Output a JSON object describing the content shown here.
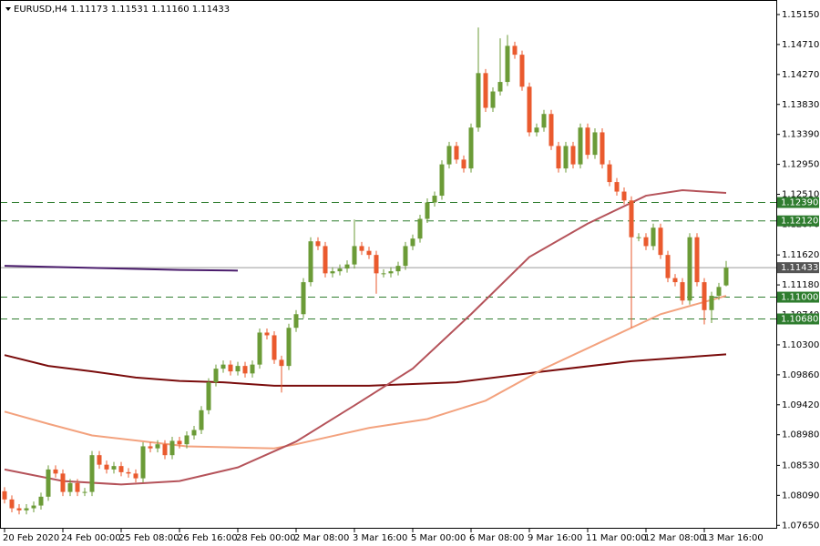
{
  "chart_data": {
    "type": "candlestick",
    "title": "EURUSD,H4  1.11173 1.11531 1.11160 1.11433",
    "categories": [
      "20 Feb 2020",
      null,
      null,
      null,
      null,
      null,
      null,
      null,
      "24 Feb 00:00",
      null,
      null,
      null,
      null,
      null,
      null,
      null,
      "25 Feb 08:00",
      null,
      null,
      null,
      null,
      null,
      null,
      null,
      "26 Feb 16:00",
      null,
      null,
      null,
      null,
      null,
      null,
      null,
      "28 Feb 00:00",
      null,
      null,
      null,
      null,
      null,
      null,
      null,
      "2 Mar 08:00",
      null,
      null,
      null,
      null,
      null,
      null,
      null,
      "3 Mar 16:00",
      null,
      null,
      null,
      null,
      null,
      null,
      null,
      "5 Mar 00:00",
      null,
      null,
      null,
      null,
      null,
      null,
      null,
      "6 Mar 08:00",
      null,
      null,
      null,
      null,
      null,
      null,
      null,
      "9 Mar 16:00",
      null,
      null,
      null,
      null,
      null,
      null,
      null,
      "11 Mar 00:00",
      null,
      null,
      null,
      null,
      null,
      null,
      null,
      "12 Mar 08:00",
      null,
      null,
      null,
      null,
      null,
      null,
      null,
      "13 Mar 16:00",
      null,
      null,
      null
    ],
    "open": [
      1.0815,
      1.0803,
      1.079,
      1.0787,
      1.079,
      1.0794,
      1.0807,
      1.0847,
      1.0841,
      1.0814,
      1.0827,
      1.0814,
      1.0814,
      1.0868,
      1.0854,
      1.0847,
      1.0852,
      1.0843,
      1.0841,
      1.0834,
      1.0881,
      1.0878,
      1.0884,
      1.0868,
      1.0889,
      1.0884,
      1.0897,
      1.0905,
      1.0934,
      1.0975,
      1.0995,
      1.1001,
      1.0991,
      1.0999,
      1.0988,
      1.1001,
      1.1048,
      1.1044,
      1.1008,
      1.0999,
      1.1055,
      1.1075,
      1.1122,
      1.1182,
      1.1175,
      1.1135,
      1.1138,
      1.1142,
      1.1148,
      1.1175,
      1.1168,
      1.1162,
      1.1135,
      1.1135,
      1.1138,
      1.1146,
      1.1175,
      1.1186,
      1.1215,
      1.1239,
      1.1249,
      1.1295,
      1.1322,
      1.1302,
      1.1289,
      1.1349,
      1.1429,
      1.1378,
      1.1402,
      1.1416,
      1.1469,
      1.1456,
      1.1409,
      1.1342,
      1.1349,
      1.1369,
      1.1322,
      1.1289,
      1.1322,
      1.1295,
      1.1349,
      1.1309,
      1.1342,
      1.1295,
      1.1269,
      1.1255,
      1.1242,
      1.1188,
      1.1188,
      1.1175,
      1.1202,
      1.1162,
      1.1128,
      1.1122,
      1.1095,
      1.1188,
      1.1122,
      1.1081,
      1.1102,
      1.11173
    ],
    "high": [
      1.0821,
      1.0809,
      1.0796,
      1.0796,
      1.08,
      1.0813,
      1.0853,
      1.0853,
      1.0847,
      1.0833,
      1.0833,
      1.082,
      1.0874,
      1.0874,
      1.086,
      1.0858,
      1.0858,
      1.0849,
      1.0847,
      1.0887,
      1.0887,
      1.089,
      1.089,
      1.0895,
      1.0895,
      1.0903,
      1.0911,
      1.094,
      1.0981,
      1.1001,
      1.1007,
      1.1007,
      1.1005,
      1.1005,
      1.1007,
      1.1054,
      1.1054,
      1.105,
      1.1014,
      1.1061,
      1.1081,
      1.1128,
      1.1188,
      1.1188,
      1.1181,
      1.1144,
      1.1148,
      1.1154,
      1.1214,
      1.1181,
      1.1174,
      1.1168,
      1.1141,
      1.1144,
      1.1152,
      1.1181,
      1.1192,
      1.1221,
      1.1245,
      1.1255,
      1.1301,
      1.1328,
      1.1328,
      1.1308,
      1.1355,
      1.1496,
      1.1435,
      1.1408,
      1.148,
      1.1485,
      1.1475,
      1.1462,
      1.1415,
      1.1355,
      1.1375,
      1.1375,
      1.1328,
      1.1328,
      1.1328,
      1.1355,
      1.1355,
      1.1348,
      1.1348,
      1.1301,
      1.1275,
      1.1261,
      1.1248,
      1.1194,
      1.1194,
      1.1208,
      1.1208,
      1.1168,
      1.1134,
      1.1128,
      1.1194,
      1.1194,
      1.1128,
      1.1108,
      1.1121,
      1.11531
    ],
    "low": [
      1.0797,
      1.0784,
      1.0781,
      1.0781,
      1.0784,
      1.0788,
      1.0801,
      1.0835,
      1.0808,
      1.0808,
      1.0808,
      1.0808,
      1.0808,
      1.0848,
      1.0841,
      1.0841,
      1.0837,
      1.0835,
      1.0828,
      1.0828,
      1.0872,
      1.0872,
      1.0862,
      1.0862,
      1.0878,
      1.0878,
      1.0891,
      1.0899,
      1.0928,
      1.0969,
      1.0989,
      1.0985,
      1.0985,
      1.0982,
      1.0982,
      1.0995,
      1.1038,
      1.1002,
      1.096,
      1.0993,
      1.1049,
      1.1069,
      1.1116,
      1.1169,
      1.1129,
      1.1129,
      1.1132,
      1.1136,
      1.1142,
      1.1162,
      1.1156,
      1.1105,
      1.1129,
      1.1129,
      1.1132,
      1.114,
      1.1169,
      1.118,
      1.1209,
      1.1233,
      1.1243,
      1.1289,
      1.1296,
      1.1283,
      1.1283,
      1.1343,
      1.1372,
      1.1372,
      1.1396,
      1.141,
      1.145,
      1.1403,
      1.1336,
      1.1336,
      1.1343,
      1.1316,
      1.1283,
      1.1283,
      1.1289,
      1.1289,
      1.1303,
      1.1303,
      1.1289,
      1.1263,
      1.1249,
      1.1236,
      1.1055,
      1.1182,
      1.1169,
      1.1169,
      1.1156,
      1.1122,
      1.1116,
      1.1089,
      1.1089,
      1.1116,
      1.106,
      1.1062,
      1.1096,
      1.1116
    ],
    "close": [
      1.0803,
      1.079,
      1.0787,
      1.079,
      1.0794,
      1.0807,
      1.0847,
      1.0841,
      1.0814,
      1.0827,
      1.0814,
      1.0814,
      1.0868,
      1.0854,
      1.0847,
      1.0852,
      1.0843,
      1.0841,
      1.0834,
      1.0881,
      1.0878,
      1.0884,
      1.0868,
      1.0889,
      1.0884,
      1.0897,
      1.0905,
      1.0934,
      1.0975,
      1.0995,
      1.1001,
      1.0991,
      1.0999,
      1.0988,
      1.1001,
      1.1048,
      1.1044,
      1.1008,
      1.0999,
      1.1055,
      1.1075,
      1.1122,
      1.1182,
      1.1175,
      1.1135,
      1.1138,
      1.1142,
      1.1148,
      1.1175,
      1.1168,
      1.1162,
      1.1135,
      1.1135,
      1.1138,
      1.1146,
      1.1175,
      1.1186,
      1.1215,
      1.1239,
      1.1249,
      1.1295,
      1.1322,
      1.1302,
      1.1289,
      1.1349,
      1.1429,
      1.1378,
      1.1402,
      1.1416,
      1.1469,
      1.1456,
      1.1409,
      1.1342,
      1.1349,
      1.1369,
      1.1322,
      1.1289,
      1.1322,
      1.1295,
      1.1349,
      1.1309,
      1.1342,
      1.1295,
      1.1269,
      1.1255,
      1.1242,
      1.1188,
      1.1188,
      1.1175,
      1.1202,
      1.1162,
      1.1128,
      1.1122,
      1.1095,
      1.1188,
      1.1122,
      1.1081,
      1.1102,
      1.1115,
      1.11433
    ],
    "up_color": "#6b9b37",
    "down_color": "#ea5a2e",
    "series": [
      {
        "color": "#4a1c6c",
        "x": [
          0,
          8,
          16,
          24,
          32
        ],
        "values": [
          1.1146,
          1.1144,
          1.1142,
          1.114,
          1.1139
        ]
      },
      {
        "color": "#7a0c0c",
        "x": [
          0,
          6,
          12,
          18,
          24,
          30,
          37,
          50,
          62,
          74,
          86,
          99
        ],
        "values": [
          1.1015,
          1.0999,
          1.0991,
          1.0982,
          1.0977,
          1.0975,
          1.097,
          1.097,
          1.0975,
          1.0991,
          1.1006,
          1.1016
        ]
      },
      {
        "color": "#f3a27e",
        "x": [
          0,
          6,
          12,
          25,
          37,
          40,
          50,
          58,
          66,
          74,
          82,
          90,
          99
        ],
        "values": [
          1.0932,
          1.0914,
          1.0897,
          1.0881,
          1.0878,
          1.0884,
          1.0908,
          1.0921,
          1.0948,
          1.0995,
          1.1035,
          1.1075,
          1.1102
        ]
      },
      {
        "color": "#b5535a",
        "x": [
          0,
          8,
          16,
          24,
          32,
          40,
          48,
          56,
          64,
          72,
          80,
          88,
          93,
          99
        ],
        "values": [
          1.0847,
          1.083,
          1.0825,
          1.083,
          1.085,
          1.0888,
          1.0941,
          1.0995,
          1.1075,
          1.1159,
          1.1208,
          1.1249,
          1.1257,
          1.1253
        ]
      }
    ],
    "levels": [
      {
        "value": 1.1239,
        "label": "1.12390"
      },
      {
        "value": 1.1212,
        "label": "1.12120"
      },
      {
        "value": 1.11,
        "label": "1.11000"
      },
      {
        "value": 1.1068,
        "label": "1.10680"
      }
    ],
    "level_color": "#2f7d2f",
    "last_price": 1.11433,
    "ylim": [
      1.076,
      1.1531
    ],
    "yticks": [
      {
        "value": 1.0765,
        "label": "1.07650"
      },
      {
        "value": 1.0809,
        "label": "1.08090"
      },
      {
        "value": 1.0853,
        "label": "1.08530"
      },
      {
        "value": 1.0898,
        "label": "1.08980"
      },
      {
        "value": 1.0942,
        "label": "1.09420"
      },
      {
        "value": 1.0986,
        "label": "1.09860"
      },
      {
        "value": 1.103,
        "label": "1.10300"
      },
      {
        "value": 1.1074,
        "label": "1.10740"
      },
      {
        "value": 1.1118,
        "label": "1.11180"
      },
      {
        "value": 1.1162,
        "label": "1.11620"
      },
      {
        "value": 1.1207,
        "label": "1.12070"
      },
      {
        "value": 1.1251,
        "label": "1.12510"
      },
      {
        "value": 1.1295,
        "label": "1.12950"
      },
      {
        "value": 1.1339,
        "label": "1.13390"
      },
      {
        "value": 1.1383,
        "label": "1.13830"
      },
      {
        "value": 1.1427,
        "label": "1.14270"
      },
      {
        "value": 1.1471,
        "label": "1.14710"
      },
      {
        "value": 1.1515,
        "label": "1.15150"
      }
    ],
    "grid": false
  }
}
